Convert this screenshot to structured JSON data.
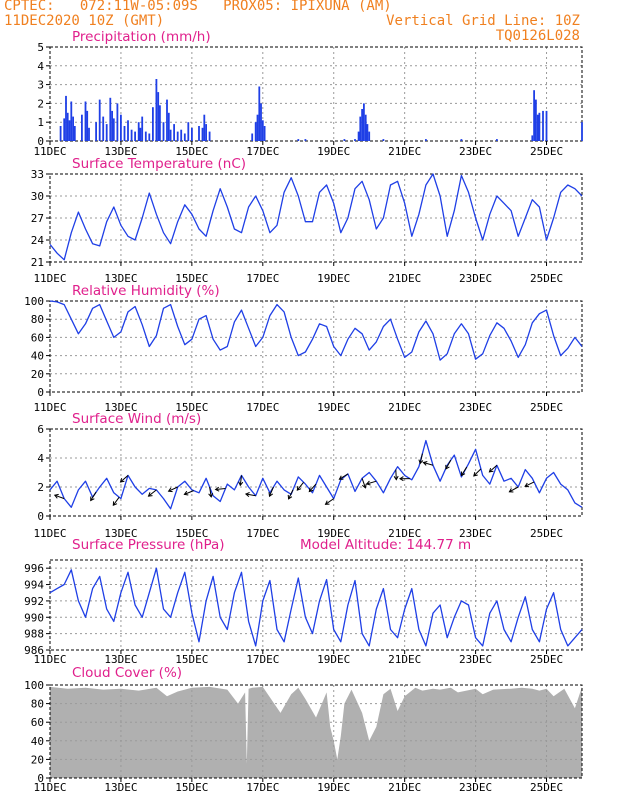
{
  "header": {
    "line1_left": "CPTEC:   072:11W-05:09S   PROX05: IPIXUNA (AM)",
    "line2_left": "11DEC2020 10Z (GMT)",
    "line2_right": "Vertical Grid Line: 10Z",
    "line3_right": "TQ0126L028"
  },
  "colors": {
    "header": "#f08020",
    "title": "#e0208c",
    "series": "#1f3fe6",
    "cloud": "#b0b0b0",
    "grid": "#9a9a9a"
  },
  "x_tick_labels": [
    "11DEC",
    "13DEC",
    "15DEC",
    "17DEC",
    "19DEC",
    "21DEC",
    "23DEC",
    "25DEC"
  ],
  "x_tick_days": [
    0,
    2,
    4,
    6,
    8,
    10,
    12,
    14
  ],
  "chart_data": [
    {
      "id": "precip",
      "type": "bar",
      "title": "Precipitation (mm/h)",
      "ylim": [
        0,
        5
      ],
      "yticks": [
        0,
        1,
        2,
        3,
        4,
        5
      ],
      "xlim_days": [
        0,
        15
      ],
      "bars": [
        [
          0.3,
          0.8
        ],
        [
          0.4,
          1.2
        ],
        [
          0.45,
          2.4
        ],
        [
          0.5,
          1.5
        ],
        [
          0.55,
          1.1
        ],
        [
          0.6,
          2.1
        ],
        [
          0.65,
          1.3
        ],
        [
          0.7,
          0.8
        ],
        [
          0.9,
          1.4
        ],
        [
          1.0,
          2.1
        ],
        [
          1.05,
          1.6
        ],
        [
          1.1,
          0.7
        ],
        [
          1.3,
          1.0
        ],
        [
          1.4,
          2.2
        ],
        [
          1.5,
          1.3
        ],
        [
          1.6,
          0.9
        ],
        [
          1.7,
          2.3
        ],
        [
          1.75,
          1.6
        ],
        [
          1.8,
          1.2
        ],
        [
          1.9,
          2.0
        ],
        [
          2.0,
          1.4
        ],
        [
          2.1,
          0.8
        ],
        [
          2.2,
          1.1
        ],
        [
          2.3,
          0.6
        ],
        [
          2.4,
          0.5
        ],
        [
          2.5,
          1.0
        ],
        [
          2.55,
          0.7
        ],
        [
          2.6,
          1.3
        ],
        [
          2.7,
          0.5
        ],
        [
          2.8,
          0.4
        ],
        [
          2.9,
          1.8
        ],
        [
          3.0,
          3.3
        ],
        [
          3.05,
          2.6
        ],
        [
          3.1,
          1.9
        ],
        [
          3.2,
          1.0
        ],
        [
          3.3,
          2.2
        ],
        [
          3.35,
          1.5
        ],
        [
          3.4,
          0.6
        ],
        [
          3.5,
          0.9
        ],
        [
          3.6,
          0.5
        ],
        [
          3.7,
          0.6
        ],
        [
          3.8,
          0.4
        ],
        [
          3.9,
          1.0
        ],
        [
          4.0,
          0.7
        ],
        [
          4.2,
          0.8
        ],
        [
          4.3,
          0.7
        ],
        [
          4.35,
          1.4
        ],
        [
          4.4,
          0.9
        ],
        [
          4.5,
          0.5
        ],
        [
          5.7,
          0.4
        ],
        [
          5.8,
          1.0
        ],
        [
          5.85,
          1.4
        ],
        [
          5.9,
          2.9
        ],
        [
          5.95,
          2.0
        ],
        [
          6.0,
          1.1
        ],
        [
          6.05,
          0.8
        ],
        [
          7.0,
          0.1
        ],
        [
          7.2,
          0.1
        ],
        [
          8.3,
          0.1
        ],
        [
          8.6,
          0.1
        ],
        [
          8.7,
          0.5
        ],
        [
          8.75,
          1.3
        ],
        [
          8.8,
          1.7
        ],
        [
          8.85,
          2.0
        ],
        [
          8.9,
          1.4
        ],
        [
          8.95,
          0.9
        ],
        [
          9.0,
          0.5
        ],
        [
          9.4,
          0.1
        ],
        [
          10.6,
          0.1
        ],
        [
          11.6,
          0.1
        ],
        [
          12.6,
          0.1
        ],
        [
          13.6,
          0.3
        ],
        [
          13.65,
          2.7
        ],
        [
          13.7,
          2.2
        ],
        [
          13.75,
          1.4
        ],
        [
          13.8,
          1.5
        ],
        [
          13.9,
          1.6
        ],
        [
          14.0,
          1.6
        ],
        [
          15.0,
          1.0
        ]
      ]
    },
    {
      "id": "temp",
      "type": "line",
      "title": "Surface Temperature (nC)",
      "ylim": [
        21,
        33
      ],
      "yticks": [
        21,
        24,
        27,
        30,
        33
      ],
      "xlim_days": [
        0,
        15
      ],
      "x_days": [
        0,
        0.2,
        0.4,
        0.6,
        0.8,
        1.0,
        1.2,
        1.4,
        1.6,
        1.8,
        2.0,
        2.2,
        2.4,
        2.6,
        2.8,
        3.0,
        3.2,
        3.4,
        3.6,
        3.8,
        4.0,
        4.2,
        4.4,
        4.6,
        4.8,
        5.0,
        5.2,
        5.4,
        5.6,
        5.8,
        6.0,
        6.2,
        6.4,
        6.6,
        6.8,
        7.0,
        7.2,
        7.4,
        7.6,
        7.8,
        8.0,
        8.2,
        8.4,
        8.6,
        8.8,
        9.0,
        9.2,
        9.4,
        9.6,
        9.8,
        10.0,
        10.2,
        10.4,
        10.6,
        10.8,
        11.0,
        11.2,
        11.4,
        11.6,
        11.8,
        12.0,
        12.2,
        12.4,
        12.6,
        12.8,
        13.0,
        13.2,
        13.4,
        13.6,
        13.8,
        14.0,
        14.2,
        14.4,
        14.6,
        14.8,
        15.0
      ],
      "values": [
        23.4,
        22.2,
        21.3,
        25.0,
        27.8,
        25.5,
        23.5,
        23.2,
        26.5,
        28.5,
        26.0,
        24.5,
        24.0,
        27.0,
        30.4,
        27.5,
        25.0,
        23.5,
        26.5,
        28.8,
        27.5,
        25.5,
        24.5,
        28.0,
        31.0,
        28.5,
        25.5,
        25.0,
        28.5,
        30.0,
        28.0,
        25.0,
        26.0,
        30.5,
        32.5,
        30.0,
        26.5,
        26.5,
        30.5,
        31.5,
        29.0,
        25.0,
        27.0,
        31.0,
        32.0,
        29.5,
        25.5,
        27.0,
        31.5,
        32.0,
        29.0,
        24.5,
        27.5,
        31.5,
        33.0,
        30.0,
        24.5,
        28.0,
        32.8,
        30.5,
        27.0,
        24.0,
        27.5,
        30.0,
        29.0,
        28.0,
        24.5,
        27.0,
        29.5,
        28.5,
        24.0,
        27.0,
        30.5,
        31.5,
        31.0,
        30.0
      ]
    },
    {
      "id": "rh",
      "type": "line",
      "title": "Relative Humidity (%)",
      "ylim": [
        0,
        100
      ],
      "yticks": [
        0,
        20,
        40,
        60,
        80,
        100
      ],
      "xlim_days": [
        0,
        15
      ],
      "x_days": [
        0,
        0.2,
        0.4,
        0.6,
        0.8,
        1.0,
        1.2,
        1.4,
        1.6,
        1.8,
        2.0,
        2.2,
        2.4,
        2.6,
        2.8,
        3.0,
        3.2,
        3.4,
        3.6,
        3.8,
        4.0,
        4.2,
        4.4,
        4.6,
        4.8,
        5.0,
        5.2,
        5.4,
        5.6,
        5.8,
        6.0,
        6.2,
        6.4,
        6.6,
        6.8,
        7.0,
        7.2,
        7.4,
        7.6,
        7.8,
        8.0,
        8.2,
        8.4,
        8.6,
        8.8,
        9.0,
        9.2,
        9.4,
        9.6,
        9.8,
        10.0,
        10.2,
        10.4,
        10.6,
        10.8,
        11.0,
        11.2,
        11.4,
        11.6,
        11.8,
        12.0,
        12.2,
        12.4,
        12.6,
        12.8,
        13.0,
        13.2,
        13.4,
        13.6,
        13.8,
        14.0,
        14.2,
        14.4,
        14.6,
        14.8,
        15.0
      ],
      "values": [
        100,
        99,
        96,
        80,
        64,
        75,
        92,
        96,
        78,
        60,
        66,
        88,
        94,
        74,
        50,
        62,
        92,
        96,
        72,
        52,
        58,
        80,
        84,
        58,
        46,
        50,
        77,
        90,
        70,
        50,
        60,
        84,
        96,
        88,
        60,
        40,
        44,
        58,
        75,
        72,
        50,
        40,
        58,
        70,
        64,
        46,
        55,
        72,
        80,
        58,
        38,
        44,
        66,
        78,
        64,
        35,
        42,
        64,
        75,
        64,
        36,
        42,
        62,
        76,
        70,
        56,
        38,
        52,
        76,
        86,
        90,
        62,
        40,
        48,
        60,
        50
      ]
    },
    {
      "id": "wind",
      "type": "line",
      "title": "Surface Wind (m/s)",
      "ylim": [
        0,
        6
      ],
      "yticks": [
        0,
        2,
        4,
        6
      ],
      "xlim_days": [
        0,
        15
      ],
      "x_days": [
        0,
        0.2,
        0.4,
        0.6,
        0.8,
        1.0,
        1.2,
        1.4,
        1.6,
        1.8,
        2.0,
        2.2,
        2.4,
        2.6,
        2.8,
        3.0,
        3.2,
        3.4,
        3.6,
        3.8,
        4.0,
        4.2,
        4.4,
        4.6,
        4.8,
        5.0,
        5.2,
        5.4,
        5.6,
        5.8,
        6.0,
        6.2,
        6.4,
        6.6,
        6.8,
        7.0,
        7.2,
        7.4,
        7.6,
        7.8,
        8.0,
        8.2,
        8.4,
        8.6,
        8.8,
        9.0,
        9.2,
        9.4,
        9.6,
        9.8,
        10.0,
        10.2,
        10.4,
        10.6,
        10.8,
        11.0,
        11.2,
        11.4,
        11.6,
        11.8,
        12.0,
        12.2,
        12.4,
        12.6,
        12.8,
        13.0,
        13.2,
        13.4,
        13.6,
        13.8,
        14.0,
        14.2,
        14.4,
        14.6,
        14.8,
        15.0
      ],
      "values": [
        1.8,
        2.4,
        1.2,
        0.6,
        1.8,
        2.4,
        1.3,
        2.0,
        2.6,
        1.6,
        1.2,
        2.8,
        2.0,
        1.5,
        1.9,
        1.8,
        1.2,
        0.5,
        2.0,
        2.4,
        1.8,
        1.6,
        2.6,
        1.4,
        1.0,
        2.2,
        1.8,
        2.8,
        2.0,
        1.4,
        2.6,
        1.6,
        2.4,
        1.8,
        1.5,
        2.7,
        2.2,
        1.6,
        2.8,
        2.0,
        1.2,
        2.5,
        2.9,
        1.7,
        2.6,
        3.0,
        2.4,
        1.6,
        2.6,
        3.4,
        2.8,
        2.5,
        3.4,
        5.2,
        3.5,
        2.4,
        3.5,
        4.2,
        2.7,
        3.6,
        4.6,
        2.8,
        2.2,
        3.5,
        2.4,
        2.6,
        2.0,
        3.2,
        2.6,
        1.6,
        2.6,
        3.0,
        2.2,
        1.8,
        0.9,
        0.6
      ],
      "arrows_days": [
        0.4,
        1.3,
        1.95,
        2.2,
        3.0,
        3.6,
        4.05,
        4.5,
        4.95,
        5.4,
        5.8,
        6.3,
        6.85,
        7.15,
        7.5,
        8.0,
        8.4,
        8.8,
        9.2,
        9.75,
        10.15,
        10.5,
        10.8,
        11.3,
        11.75,
        12.15,
        12.6,
        13.2,
        13.65
      ]
    },
    {
      "id": "pressure",
      "type": "line",
      "title": "Surface Pressure (hPa)",
      "annotation": "Model Altitude: 144.77 m",
      "ylim": [
        986,
        997
      ],
      "yticks": [
        986,
        988,
        990,
        992,
        994,
        996
      ],
      "xlim_days": [
        0,
        15
      ],
      "x_days": [
        0,
        0.2,
        0.4,
        0.6,
        0.8,
        1.0,
        1.2,
        1.4,
        1.6,
        1.8,
        2.0,
        2.2,
        2.4,
        2.6,
        2.8,
        3.0,
        3.2,
        3.4,
        3.6,
        3.8,
        4.0,
        4.2,
        4.4,
        4.6,
        4.8,
        5.0,
        5.2,
        5.4,
        5.6,
        5.8,
        6.0,
        6.2,
        6.4,
        6.6,
        6.8,
        7.0,
        7.2,
        7.4,
        7.6,
        7.8,
        8.0,
        8.2,
        8.4,
        8.6,
        8.8,
        9.0,
        9.2,
        9.4,
        9.6,
        9.8,
        10.0,
        10.2,
        10.4,
        10.6,
        10.8,
        11.0,
        11.2,
        11.4,
        11.6,
        11.8,
        12.0,
        12.2,
        12.4,
        12.6,
        12.8,
        13.0,
        13.2,
        13.4,
        13.6,
        13.8,
        14.0,
        14.2,
        14.4,
        14.6,
        14.8,
        15.0
      ],
      "values": [
        993,
        993.5,
        994,
        995.8,
        992,
        990,
        993.5,
        995,
        991,
        989.5,
        993,
        995.5,
        991.5,
        990,
        993,
        996,
        991,
        990,
        993,
        995.5,
        990.5,
        987,
        992,
        995,
        990,
        988.5,
        993,
        995.5,
        989.5,
        986.5,
        992,
        994.5,
        988.5,
        987,
        991,
        994.8,
        990,
        988,
        992,
        994.6,
        988.5,
        987,
        991.5,
        994.5,
        988,
        986.5,
        991,
        993.5,
        988.5,
        987.5,
        991,
        993.5,
        988.5,
        986.5,
        990.5,
        991.5,
        987.5,
        990,
        992,
        991.5,
        987.5,
        986.5,
        990.5,
        992,
        988.5,
        987,
        990,
        992.5,
        988.5,
        987,
        991,
        993,
        988.5,
        986.5,
        987.5,
        988.5
      ]
    },
    {
      "id": "cloud",
      "type": "area",
      "title": "Cloud Cover (%)",
      "ylim": [
        0,
        100
      ],
      "yticks": [
        0,
        20,
        40,
        60,
        80,
        100
      ],
      "xlim_days": [
        0,
        15
      ],
      "x_days": [
        0,
        0.5,
        1.0,
        1.5,
        2.0,
        2.5,
        3.0,
        3.3,
        3.6,
        4.0,
        4.5,
        5.0,
        5.3,
        5.5,
        5.55,
        5.6,
        5.7,
        6.0,
        6.5,
        6.8,
        7.0,
        7.2,
        7.5,
        7.8,
        7.9,
        8.0,
        8.1,
        8.2,
        8.3,
        8.5,
        8.8,
        9.0,
        9.2,
        9.4,
        9.6,
        9.8,
        10.0,
        10.3,
        10.5,
        10.8,
        11.0,
        11.3,
        11.5,
        12.0,
        12.2,
        12.5,
        13.0,
        13.3,
        13.6,
        13.8,
        14.0,
        14.2,
        14.5,
        14.8,
        15.0
      ],
      "values": [
        98,
        96,
        97,
        95,
        96,
        94,
        97,
        88,
        93,
        97,
        98,
        95,
        80,
        92,
        15,
        96,
        97,
        98,
        70,
        90,
        97,
        85,
        65,
        92,
        55,
        40,
        20,
        45,
        80,
        95,
        70,
        40,
        55,
        90,
        96,
        72,
        88,
        97,
        94,
        96,
        95,
        97,
        92,
        96,
        90,
        95,
        96,
        97,
        96,
        94,
        96,
        88,
        96,
        75,
        98
      ]
    }
  ]
}
